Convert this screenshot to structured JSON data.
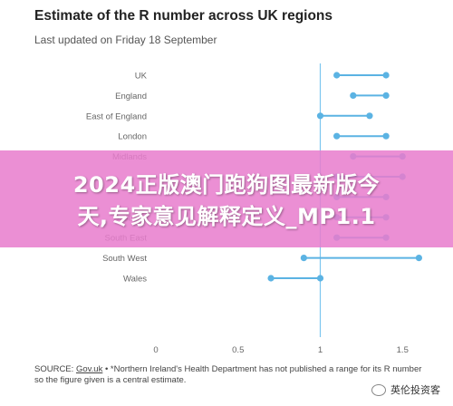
{
  "chart_data": {
    "type": "dumbbell",
    "title": "Estimate of the R number across UK regions",
    "subtitle": "Last updated on Friday 18 September",
    "categories": [
      "UK",
      "England",
      "East of England",
      "London",
      "Midlands",
      "North East and Yorkshire",
      "North West",
      "Scotland",
      "South East",
      "South West",
      "Wales"
    ],
    "category_labels": [
      "UK",
      "England",
      "East of England",
      "London",
      "Midlands",
      "",
      "",
      "Scotland",
      "South East",
      "South West",
      "Wales"
    ],
    "series": [
      {
        "name": "",
        "values": [
          1.1,
          1.2,
          1.0,
          1.1,
          1.2,
          1.1,
          1.1,
          1.1,
          1.1,
          0.9,
          0.7
        ]
      },
      {
        "name": "",
        "values": [
          1.4,
          1.4,
          1.3,
          1.4,
          1.5,
          1.5,
          1.4,
          1.4,
          1.4,
          1.6,
          1.0
        ]
      }
    ],
    "reference_line": 1,
    "xlim": [
      0,
      1.7
    ],
    "xticks": [
      "0",
      "0.5",
      "1",
      "1.5"
    ],
    "xtick_values": [
      0,
      0.5,
      1,
      1.5
    ],
    "grid": false,
    "color": "#5bb3e3",
    "reference_color": "#7cc6ef"
  },
  "source": {
    "label": "SOURCE:",
    "link": "Gov.uk",
    "text": " • *Northern Ireland's Health Department has not published a range for its R number so the figure given is a central estimate."
  },
  "overlay": {
    "line1": "2024正版澳门跑狗图最新版今",
    "line2": "天,专家意见解释定义_MP1.1"
  },
  "watermark": {
    "text": "英伦投资客"
  }
}
